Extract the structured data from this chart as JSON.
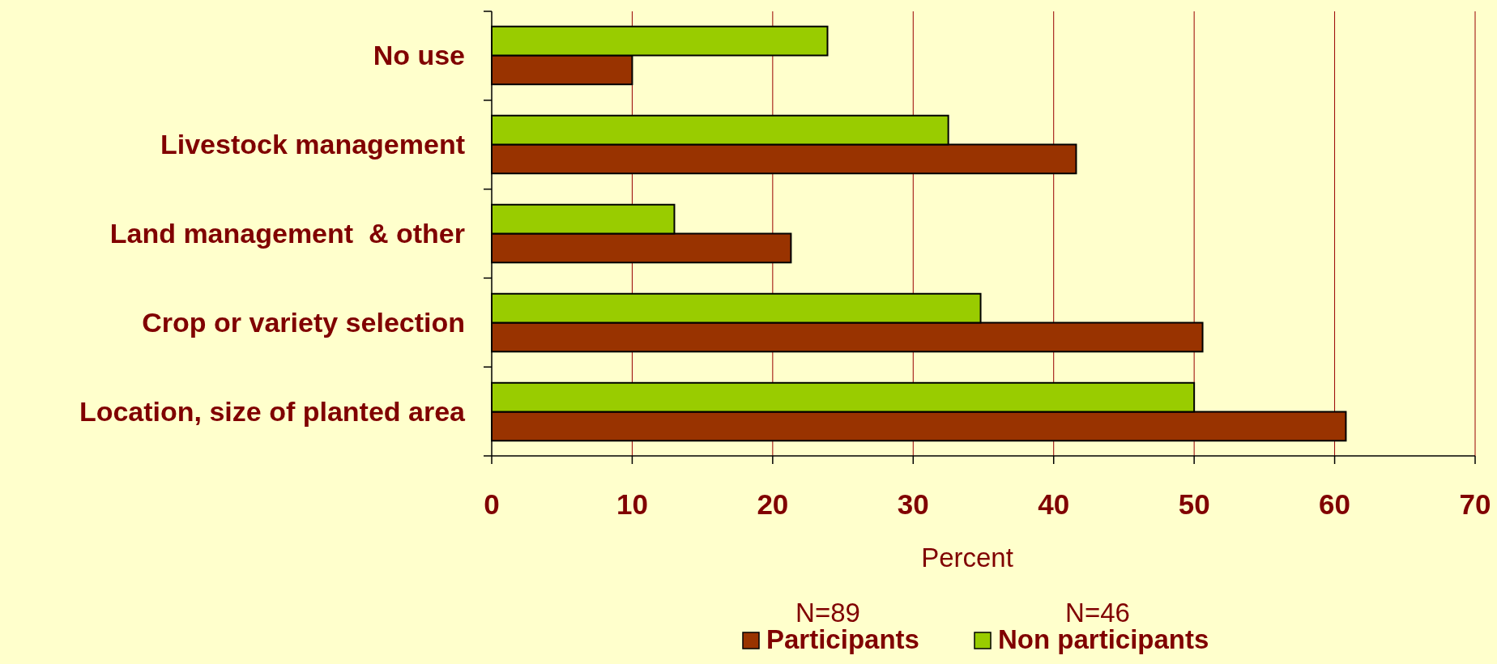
{
  "chart_data": {
    "type": "bar",
    "orientation": "horizontal",
    "xlabel": "Percent",
    "categories": [
      "No use",
      "Livestock management",
      "Land management  & other",
      "Crop or variety selection",
      "Location, size of planted area"
    ],
    "series": [
      {
        "name": "Participants",
        "color": "#993300",
        "values": [
          10,
          41.6,
          21.3,
          50.6,
          60.8
        ]
      },
      {
        "name": "Non participants",
        "color": "#99cc00",
        "values": [
          23.9,
          32.5,
          13,
          34.8,
          50
        ]
      }
    ],
    "xlim": [
      0,
      70
    ],
    "xticks": [
      0,
      10,
      20,
      30,
      40,
      50,
      60,
      70
    ],
    "grid": "x",
    "legend": "bottom",
    "annotations": [
      "N=89",
      "N=46"
    ]
  }
}
